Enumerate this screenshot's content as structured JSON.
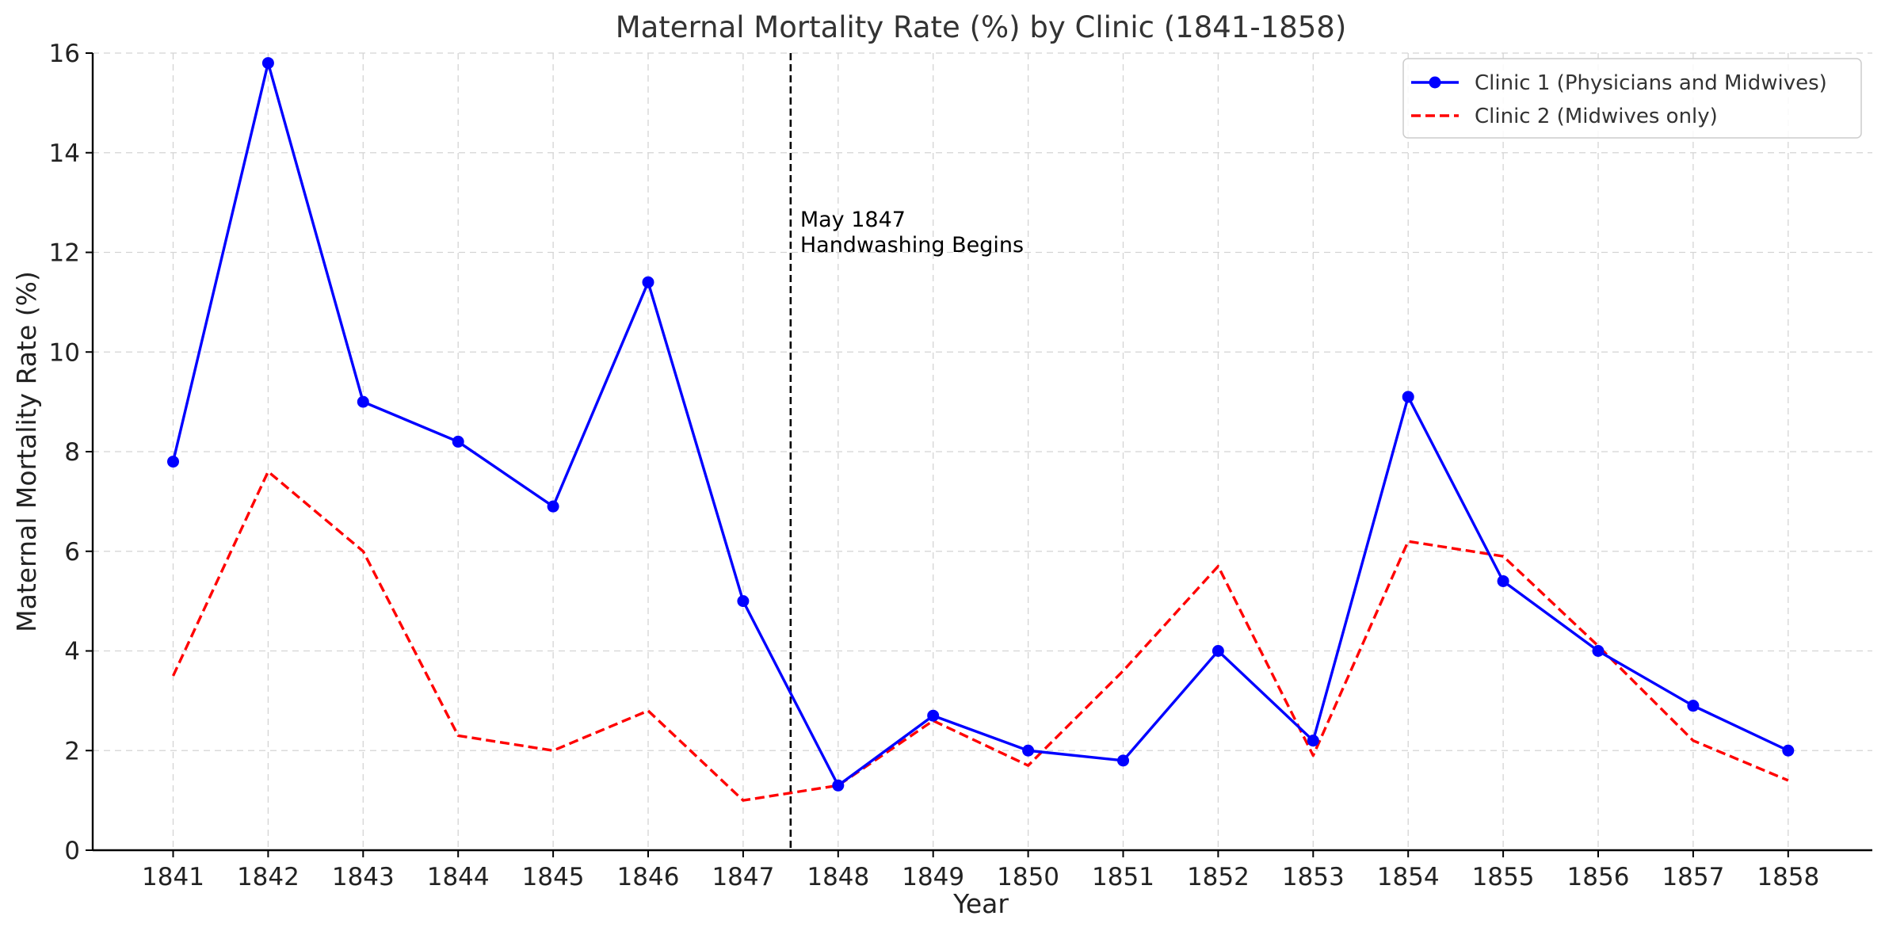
{
  "chart_data": {
    "type": "line",
    "title": "Maternal Mortality Rate (%) by Clinic (1841-1858)",
    "xlabel": "Year",
    "ylabel": "Maternal Mortality Rate (%)",
    "ylim": [
      0,
      16
    ],
    "yticks": [
      0,
      2,
      4,
      6,
      8,
      10,
      12,
      14,
      16
    ],
    "grid": true,
    "legend_position": "top-right",
    "categories": [
      "1841",
      "1842",
      "1843",
      "1844",
      "1845",
      "1846",
      "1847",
      "1848",
      "1849",
      "1850",
      "1851",
      "1852",
      "1853",
      "1854",
      "1855",
      "1856",
      "1857",
      "1858"
    ],
    "series": [
      {
        "name": "Clinic 1 (Physicians and Midwives)",
        "color": "#0000ff",
        "line_style": "solid",
        "marker": "circle",
        "values": [
          7.8,
          15.8,
          9.0,
          8.2,
          6.9,
          11.4,
          5.0,
          1.3,
          2.7,
          2.0,
          1.8,
          4.0,
          2.2,
          9.1,
          5.4,
          4.0,
          2.9,
          2.0
        ]
      },
      {
        "name": "Clinic 2 (Midwives only)",
        "color": "#ff0000",
        "line_style": "dashed",
        "marker": "none",
        "values": [
          3.5,
          7.6,
          6.0,
          2.3,
          2.0,
          2.8,
          1.0,
          1.3,
          2.6,
          1.7,
          3.6,
          5.7,
          1.9,
          6.2,
          5.9,
          4.1,
          2.2,
          1.4
        ]
      }
    ],
    "annotation": {
      "x": 1847.5,
      "lines": [
        "May 1847",
        "Handwashing Begins"
      ],
      "color": "#000000",
      "line_style": "dashed"
    }
  }
}
